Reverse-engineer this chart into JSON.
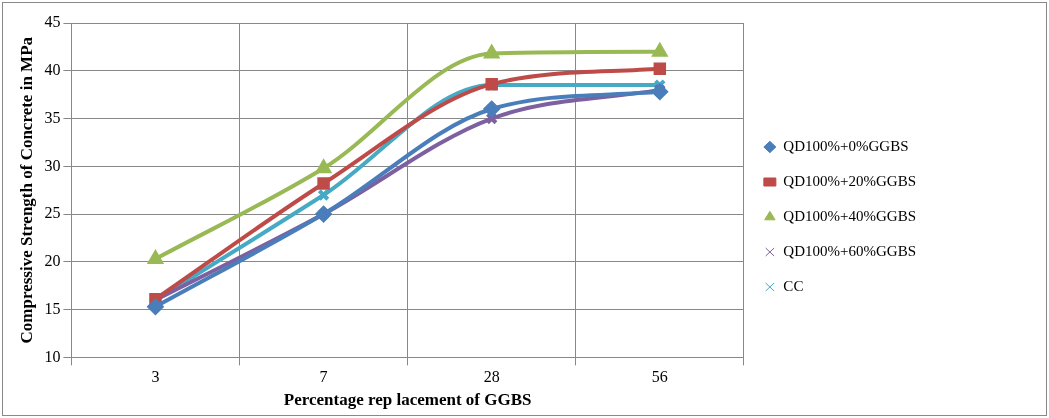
{
  "chart_data": {
    "type": "line",
    "xlabel": "Percentage rep lacement of GGBS",
    "ylabel": "Compressive Strength of Concrete in MPa",
    "categories": [
      "3",
      "7",
      "28",
      "56"
    ],
    "series": [
      {
        "name": "QD100%+0%GGBS",
        "color": "#4a7ebb",
        "marker": "diamond",
        "values": [
          15.3,
          25,
          36,
          37.8
        ]
      },
      {
        "name": "QD100%+20%GGBS",
        "color": "#be4b48",
        "marker": "square",
        "values": [
          16.1,
          28.2,
          38.6,
          40.2
        ]
      },
      {
        "name": "QD100%+40%GGBS",
        "color": "#98b954",
        "marker": "triangle",
        "values": [
          20.3,
          29.8,
          41.8,
          42
        ]
      },
      {
        "name": "QD100%+60%GGBS",
        "color": "#7d60a0",
        "marker": "cross",
        "values": [
          16,
          25,
          35,
          38
        ]
      },
      {
        "name": "CC",
        "color": "#46aac5",
        "marker": "cross",
        "values": [
          16,
          27,
          38.5,
          38.5
        ]
      }
    ],
    "ylim": [
      10,
      45
    ],
    "yticks": [
      10,
      15,
      20,
      25,
      30,
      35,
      40,
      45
    ],
    "grid": true,
    "legend": "right"
  }
}
